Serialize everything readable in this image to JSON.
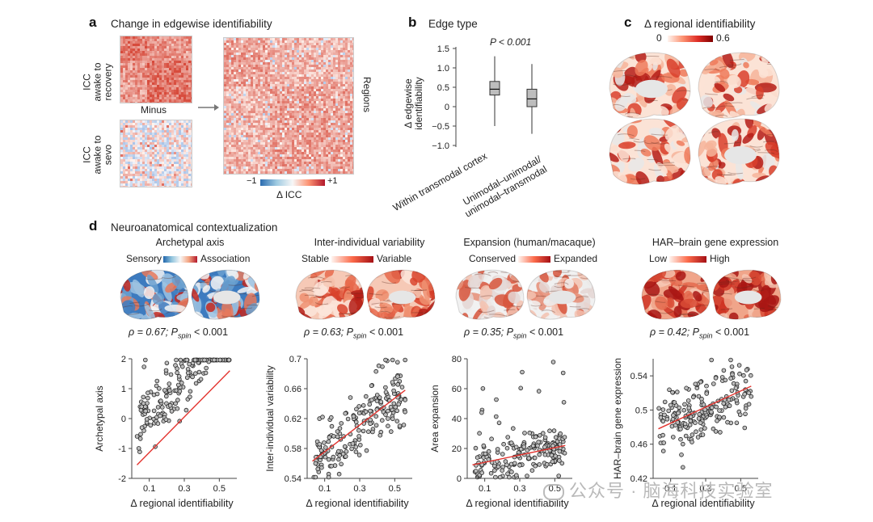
{
  "colors": {
    "red": "#d7301f",
    "blue": "#3a7ab8",
    "grey": "#c8c8c8"
  },
  "panel_a": {
    "letter": "a",
    "title": "Change in edgewise identifiability",
    "label_top": [
      "ICC",
      "awake to",
      "recovery"
    ],
    "label_bottom": [
      "ICC",
      "awake to",
      "sevo"
    ],
    "minus": "Minus",
    "regions": "Regions",
    "cbar_min": "−1",
    "cbar_max": "+1",
    "cbar_label": "Δ ICC"
  },
  "panel_b": {
    "letter": "b",
    "title": "Edge type",
    "pvalue": "P < 0.001",
    "ylabel_1": "Δ edgewise",
    "ylabel_2": "identifiability",
    "yticks": [
      "1.5",
      "1.0",
      "0.5",
      "0",
      "−0.5",
      "−1.0"
    ],
    "cat1": "Within transmodal cortex",
    "cat2_1": "Unimodal–unimodal/",
    "cat2_2": "unimodal–transmodal"
  },
  "panel_c": {
    "letter": "c",
    "title": "Δ regional identifiability",
    "cbar_min": "0",
    "cbar_max": "0.6"
  },
  "panel_d": {
    "letter": "d",
    "title": "Neuroanatomical contextualization",
    "xlabel": "Δ regional identifiability",
    "maps": [
      {
        "title": "Archetypal axis",
        "low": "Sensory",
        "high": "Association",
        "stats": "ρ = 0.67; P",
        "sub": "spin",
        "tail": "< 0.001",
        "ylabel": "Archetypal axis"
      },
      {
        "title": "Inter-individual variability",
        "low": "Stable",
        "high": "Variable",
        "stats": "ρ = 0.63; P",
        "sub": "spin",
        "tail": "< 0.001",
        "ylabel": "Inter-individual variability"
      },
      {
        "title": "Expansion (human/macaque)",
        "low": "Conserved",
        "high": "Expanded",
        "stats": "ρ = 0.35; P",
        "sub": "spin",
        "tail": "< 0.001",
        "ylabel": "Area expansion"
      },
      {
        "title": "HAR–brain gene expression",
        "low": "Low",
        "high": "High",
        "stats": "ρ = 0.42; P",
        "sub": "spin",
        "tail": "< 0.001",
        "ylabel": "HAR–brain gene expression"
      }
    ]
  },
  "watermark": "公众号 · 脑海科技实验室",
  "chart_data": [
    {
      "type": "box",
      "title": "Edge type",
      "ylabel": "Δ edgewise identifiability",
      "ylim": [
        -1.0,
        1.5
      ],
      "categories": [
        "Within transmodal cortex",
        "Unimodal–unimodal/unimodal–transmodal"
      ],
      "boxes": [
        {
          "min": -0.5,
          "q1": 0.3,
          "median": 0.45,
          "q3": 0.65,
          "max": 1.3
        },
        {
          "min": -0.7,
          "q1": 0.0,
          "median": 0.2,
          "q3": 0.45,
          "max": 1.1
        }
      ]
    },
    {
      "type": "scatter",
      "ylabel": "Archetypal axis",
      "xlabel": "Δ regional identifiability",
      "xlim": [
        0,
        0.6
      ],
      "ylim": [
        -2,
        2
      ],
      "xticks": [
        0.1,
        0.3,
        0.5
      ],
      "yticks": [
        -2,
        -1,
        0,
        1,
        2
      ],
      "fit": [
        [
          0.03,
          -1.55
        ],
        [
          0.56,
          1.6
        ]
      ],
      "y_center": -0.2,
      "slope": 6.2,
      "spread": 0.55,
      "seed": 11
    },
    {
      "type": "scatter",
      "ylabel": "Inter-individual variability",
      "xlabel": "Δ regional identifiability",
      "xlim": [
        0,
        0.6
      ],
      "ylim": [
        0.54,
        0.7
      ],
      "xticks": [
        0.1,
        0.3,
        0.5
      ],
      "yticks": [
        0.54,
        0.58,
        0.62,
        0.66,
        0.7
      ],
      "fit": [
        [
          0.03,
          0.563
        ],
        [
          0.56,
          0.658
        ]
      ],
      "y_center": 0.567,
      "slope": 0.18,
      "spread": 0.022,
      "seed": 23
    },
    {
      "type": "scatter",
      "ylabel": "Area expansion",
      "xlabel": "Δ regional identifiability",
      "xlim": [
        0,
        0.6
      ],
      "ylim": [
        0,
        80
      ],
      "xticks": [
        0.1,
        0.3,
        0.5
      ],
      "yticks": [
        0,
        20,
        40,
        60,
        80
      ],
      "fit": [
        [
          0.03,
          9
        ],
        [
          0.56,
          22
        ]
      ],
      "y_center": 8,
      "slope": 25,
      "spread": 7,
      "seed": 37
    },
    {
      "type": "scatter",
      "ylabel": "HAR–brain gene expression",
      "xlabel": "Δ regional identifiability",
      "xlim": [
        0,
        0.6
      ],
      "ylim": [
        0.42,
        0.56
      ],
      "xticks": [
        0.1,
        0.3,
        0.5
      ],
      "yticks": [
        0.42,
        0.46,
        0.5,
        0.54
      ],
      "fit": [
        [
          0.03,
          0.478
        ],
        [
          0.56,
          0.528
        ]
      ],
      "y_center": 0.477,
      "slope": 0.095,
      "spread": 0.018,
      "seed": 51
    }
  ]
}
